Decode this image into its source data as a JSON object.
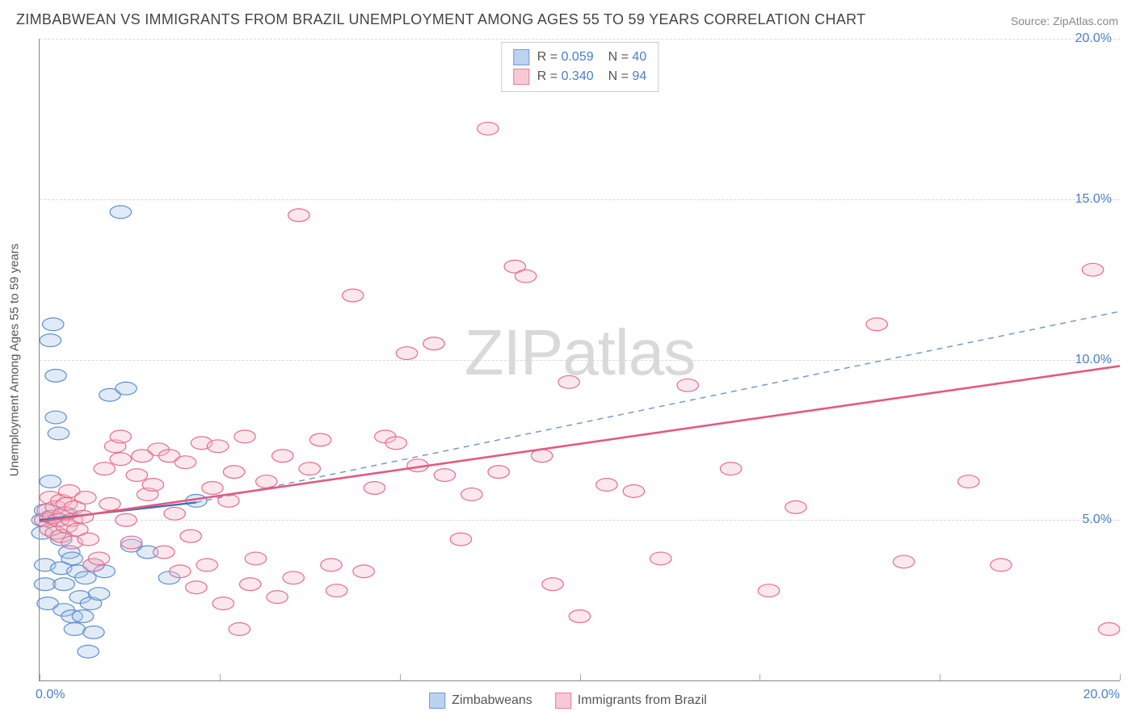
{
  "title": "ZIMBABWEAN VS IMMIGRANTS FROM BRAZIL UNEMPLOYMENT AMONG AGES 55 TO 59 YEARS CORRELATION CHART",
  "source": "Source: ZipAtlas.com",
  "ylabel": "Unemployment Among Ages 55 to 59 years",
  "watermark_a": "ZIP",
  "watermark_b": "atlas",
  "chart": {
    "type": "scatter",
    "xlim": [
      0,
      20
    ],
    "ylim": [
      0,
      20
    ],
    "xtick_min": "0.0%",
    "xtick_max": "20.0%",
    "ytick_labels": [
      "5.0%",
      "10.0%",
      "15.0%",
      "20.0%"
    ],
    "ytick_vals": [
      5,
      10,
      15,
      20
    ],
    "grid_color": "#d9d9d9",
    "background_color": "#ffffff",
    "axis_color": "#888888",
    "tick_label_color": "#4a7ec9",
    "series": [
      {
        "name": "Zimbabweans",
        "color_fill": "#a9c7ea",
        "color_stroke": "#5b8fd0",
        "swatch_fill": "#bcd3ef",
        "swatch_border": "#6b9bd6",
        "R": "0.059",
        "N": "40",
        "marker_r": 9,
        "trend": {
          "x1": 0,
          "y1": 5.0,
          "x2": 2.9,
          "y2": 5.55,
          "dashed": false,
          "stroke": "#3d6fb5",
          "width": 2.4
        },
        "trend_ext": {
          "x1": 2.9,
          "y1": 5.55,
          "x2": 20,
          "y2": 11.5,
          "dashed": true,
          "stroke": "#6b94c9",
          "width": 1.4
        },
        "points": [
          [
            0.05,
            5.0
          ],
          [
            0.05,
            4.6
          ],
          [
            0.1,
            5.3
          ],
          [
            0.1,
            3.6
          ],
          [
            0.1,
            3.0
          ],
          [
            0.15,
            2.4
          ],
          [
            0.2,
            5.1
          ],
          [
            0.2,
            6.2
          ],
          [
            0.2,
            10.6
          ],
          [
            0.25,
            11.1
          ],
          [
            0.3,
            9.5
          ],
          [
            0.3,
            8.2
          ],
          [
            0.35,
            7.7
          ],
          [
            0.35,
            5.0
          ],
          [
            0.4,
            4.4
          ],
          [
            0.4,
            3.5
          ],
          [
            0.45,
            3.0
          ],
          [
            0.45,
            2.2
          ],
          [
            0.5,
            5.2
          ],
          [
            0.55,
            4.0
          ],
          [
            0.6,
            3.8
          ],
          [
            0.6,
            2.0
          ],
          [
            0.65,
            1.6
          ],
          [
            0.7,
            3.4
          ],
          [
            0.75,
            2.6
          ],
          [
            0.8,
            2.0
          ],
          [
            0.85,
            3.2
          ],
          [
            0.9,
            0.9
          ],
          [
            0.95,
            2.4
          ],
          [
            1.0,
            3.6
          ],
          [
            1.0,
            1.5
          ],
          [
            1.1,
            2.7
          ],
          [
            1.2,
            3.4
          ],
          [
            1.3,
            8.9
          ],
          [
            1.5,
            14.6
          ],
          [
            1.6,
            9.1
          ],
          [
            1.7,
            4.2
          ],
          [
            2.0,
            4.0
          ],
          [
            2.4,
            3.2
          ],
          [
            2.9,
            5.6
          ]
        ]
      },
      {
        "name": "Immigrants from Brazil",
        "color_fill": "#f4b9c9",
        "color_stroke": "#e36d8d",
        "swatch_fill": "#f7c9d6",
        "swatch_border": "#e87b98",
        "R": "0.340",
        "N": "94",
        "marker_r": 9,
        "trend": {
          "x1": 0,
          "y1": 4.95,
          "x2": 20,
          "y2": 9.8,
          "dashed": false,
          "stroke": "#e45a7e",
          "width": 2.6
        },
        "points": [
          [
            0.1,
            5.0
          ],
          [
            0.15,
            5.3
          ],
          [
            0.2,
            5.7
          ],
          [
            0.2,
            4.7
          ],
          [
            0.25,
            5.1
          ],
          [
            0.3,
            4.6
          ],
          [
            0.3,
            5.4
          ],
          [
            0.35,
            5.0
          ],
          [
            0.4,
            5.6
          ],
          [
            0.4,
            4.5
          ],
          [
            0.45,
            5.2
          ],
          [
            0.5,
            4.8
          ],
          [
            0.5,
            5.5
          ],
          [
            0.55,
            5.9
          ],
          [
            0.6,
            5.0
          ],
          [
            0.6,
            4.3
          ],
          [
            0.65,
            5.4
          ],
          [
            0.7,
            4.7
          ],
          [
            0.8,
            5.1
          ],
          [
            0.85,
            5.7
          ],
          [
            0.9,
            4.4
          ],
          [
            1.0,
            3.6
          ],
          [
            1.1,
            3.8
          ],
          [
            1.2,
            6.6
          ],
          [
            1.3,
            5.5
          ],
          [
            1.4,
            7.3
          ],
          [
            1.5,
            6.9
          ],
          [
            1.5,
            7.6
          ],
          [
            1.6,
            5.0
          ],
          [
            1.7,
            4.3
          ],
          [
            1.8,
            6.4
          ],
          [
            1.9,
            7.0
          ],
          [
            2.0,
            5.8
          ],
          [
            2.1,
            6.1
          ],
          [
            2.2,
            7.2
          ],
          [
            2.3,
            4.0
          ],
          [
            2.4,
            7.0
          ],
          [
            2.5,
            5.2
          ],
          [
            2.6,
            3.4
          ],
          [
            2.7,
            6.8
          ],
          [
            2.8,
            4.5
          ],
          [
            2.9,
            2.9
          ],
          [
            3.0,
            7.4
          ],
          [
            3.1,
            3.6
          ],
          [
            3.2,
            6.0
          ],
          [
            3.3,
            7.3
          ],
          [
            3.4,
            2.4
          ],
          [
            3.5,
            5.6
          ],
          [
            3.6,
            6.5
          ],
          [
            3.7,
            1.6
          ],
          [
            3.8,
            7.6
          ],
          [
            3.9,
            3.0
          ],
          [
            4.0,
            3.8
          ],
          [
            4.2,
            6.2
          ],
          [
            4.4,
            2.6
          ],
          [
            4.5,
            7.0
          ],
          [
            4.7,
            3.2
          ],
          [
            4.8,
            14.5
          ],
          [
            5.0,
            6.6
          ],
          [
            5.2,
            7.5
          ],
          [
            5.4,
            3.6
          ],
          [
            5.5,
            2.8
          ],
          [
            5.8,
            12.0
          ],
          [
            6.0,
            3.4
          ],
          [
            6.2,
            6.0
          ],
          [
            6.4,
            7.6
          ],
          [
            6.6,
            7.4
          ],
          [
            6.8,
            10.2
          ],
          [
            7.0,
            6.7
          ],
          [
            7.3,
            10.5
          ],
          [
            7.5,
            6.4
          ],
          [
            7.8,
            4.4
          ],
          [
            8.0,
            5.8
          ],
          [
            8.3,
            17.2
          ],
          [
            8.5,
            6.5
          ],
          [
            8.8,
            12.9
          ],
          [
            9.0,
            12.6
          ],
          [
            9.3,
            7.0
          ],
          [
            9.5,
            3.0
          ],
          [
            9.8,
            9.3
          ],
          [
            10.0,
            2.0
          ],
          [
            10.5,
            6.1
          ],
          [
            11.0,
            5.9
          ],
          [
            11.5,
            3.8
          ],
          [
            12.0,
            9.2
          ],
          [
            12.8,
            6.6
          ],
          [
            13.5,
            2.8
          ],
          [
            14.0,
            5.4
          ],
          [
            15.5,
            11.1
          ],
          [
            16.0,
            3.7
          ],
          [
            17.2,
            6.2
          ],
          [
            17.8,
            3.6
          ],
          [
            19.5,
            12.8
          ],
          [
            19.8,
            1.6
          ]
        ]
      }
    ],
    "bottom_legend": [
      {
        "label": "Zimbabweans",
        "fill": "#bcd3ef",
        "border": "#6b9bd6"
      },
      {
        "label": "Immigrants from Brazil",
        "fill": "#f7c9d6",
        "border": "#e87b98"
      }
    ],
    "vtick_positions_pct": [
      0,
      16.67,
      33.33,
      50,
      66.67,
      83.33,
      100
    ]
  }
}
